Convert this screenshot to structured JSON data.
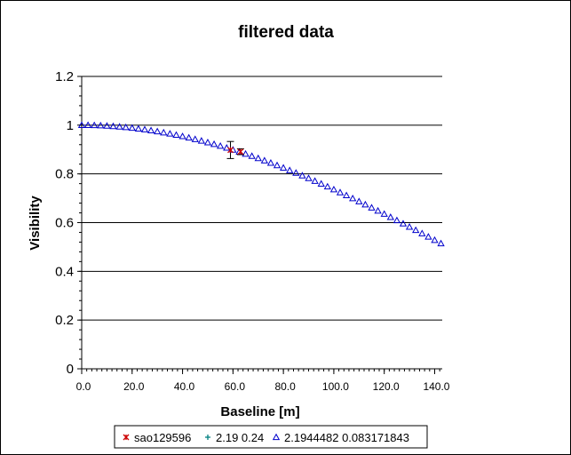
{
  "chart_data": {
    "type": "scatter",
    "title": "filtered data",
    "xlabel": "Baseline [m]",
    "ylabel": "Visibility",
    "xlim": [
      0,
      143
    ],
    "ylim": [
      0,
      1.2
    ],
    "x_ticks": [
      "0.0",
      "20.0",
      "40.0",
      "60.0",
      "80.0",
      "100.0",
      "120.0",
      "140.0"
    ],
    "x_tick_values": [
      0,
      20,
      40,
      60,
      80,
      100,
      120,
      140
    ],
    "y_ticks": [
      "0",
      "0.2",
      "0.4",
      "0.6",
      "0.8",
      "1",
      "1.2"
    ],
    "y_tick_values": [
      0,
      0.2,
      0.4,
      0.6,
      0.8,
      1.0,
      1.2
    ],
    "grid": "horizontal",
    "legend_position": "bottom",
    "series": [
      {
        "name": "sao129596",
        "marker": "asterisk",
        "color": "#cc0000",
        "points": [
          {
            "x": 59.0,
            "y": 0.898,
            "err": 0.035
          },
          {
            "x": 63.0,
            "y": 0.891,
            "err": 0.012
          }
        ]
      },
      {
        "name": "2.19 0.24",
        "marker": "plus",
        "color": "#008080",
        "points": []
      },
      {
        "name": "2.1944482 0.083171843",
        "marker": "triangle",
        "color": "#0000cc",
        "x_start": 0,
        "x_step": 2.5,
        "x_count": 58,
        "theta_mas": 2.1944482,
        "wavelength_um": 2.19,
        "model": "uniform-disk"
      }
    ]
  }
}
